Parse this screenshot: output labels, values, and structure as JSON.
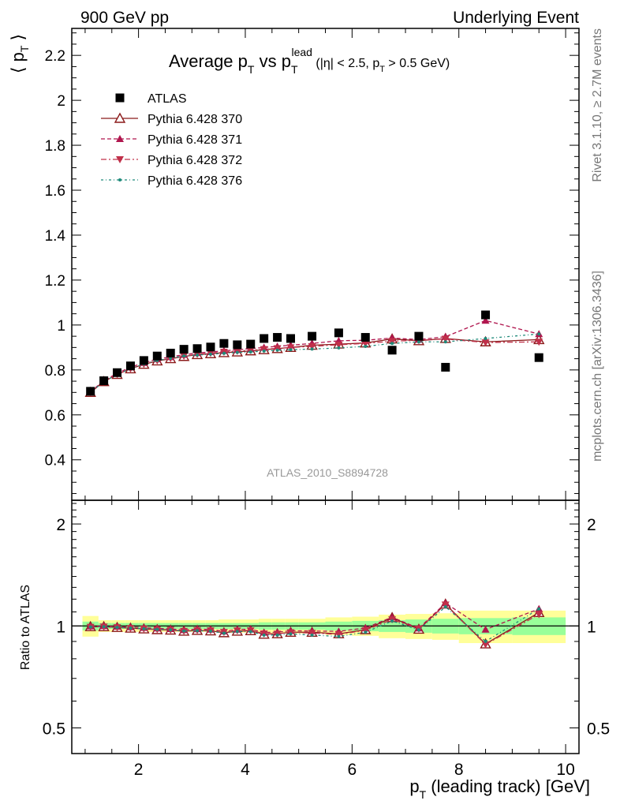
{
  "header": {
    "left": "900 GeV pp",
    "right": "Underlying Event"
  },
  "side_labels": {
    "top": "Rivet 3.1.10, ≥ 2.7M events",
    "bottom": "mcplots.cern.ch [arXiv:1306.3436]"
  },
  "watermark": "ATLAS_2010_S8894728",
  "chart_data": [
    {
      "type": "scatter",
      "title_parts": {
        "main": "Average p",
        "main_sub": "T",
        "vs": " vs p",
        "vs_sub": "T",
        "vs_sup": "lead",
        "cut_a": " (|η| < 2.5, p",
        "cut_sub": "T",
        "cut_b": " > 0.5 GeV)"
      },
      "ylabel_parts": {
        "open": "⟨ p",
        "sub": "T",
        "close": " ⟩"
      },
      "xlim": [
        0.75,
        10.25
      ],
      "ylim": [
        0.22,
        2.32
      ],
      "yticks": [
        {
          "v": 0.4,
          "label": "0.4"
        },
        {
          "v": 0.6,
          "label": "0.6"
        },
        {
          "v": 0.8,
          "label": "0.8"
        },
        {
          "v": 1.0,
          "label": "1"
        },
        {
          "v": 1.2,
          "label": "1.2"
        },
        {
          "v": 1.4,
          "label": "1.4"
        },
        {
          "v": 1.6,
          "label": "1.6"
        },
        {
          "v": 1.8,
          "label": "1.8"
        },
        {
          "v": 2.0,
          "label": "2"
        },
        {
          "v": 2.2,
          "label": "2.2"
        }
      ],
      "x": [
        1.1,
        1.35,
        1.6,
        1.85,
        2.1,
        2.35,
        2.6,
        2.85,
        3.1,
        3.35,
        3.6,
        3.85,
        4.1,
        4.35,
        4.6,
        4.85,
        5.25,
        5.75,
        6.25,
        6.75,
        7.25,
        7.75,
        8.5,
        9.5
      ],
      "series": [
        {
          "name": "ATLAS",
          "marker": "square",
          "color": "#000000",
          "line": "none",
          "values": [
            0.705,
            0.752,
            0.788,
            0.818,
            0.842,
            0.862,
            0.875,
            0.892,
            0.895,
            0.902,
            0.918,
            0.912,
            0.915,
            0.94,
            0.945,
            0.94,
            0.95,
            0.965,
            0.945,
            0.888,
            0.95,
            0.812,
            1.045,
            0.855
          ]
        },
        {
          "name": "Pythia 6.428 370",
          "marker": "triangle-open",
          "color": "#8b1a1a",
          "line": "solid",
          "values": [
            0.7,
            0.748,
            0.78,
            0.805,
            0.825,
            0.84,
            0.85,
            0.86,
            0.868,
            0.872,
            0.877,
            0.88,
            0.885,
            0.89,
            0.895,
            0.9,
            0.91,
            0.915,
            0.92,
            0.938,
            0.93,
            0.94,
            0.925,
            0.935
          ]
        },
        {
          "name": "Pythia 6.428 371",
          "marker": "triangle-up",
          "color": "#b0164e",
          "line": "dashed",
          "values": [
            0.703,
            0.752,
            0.785,
            0.812,
            0.832,
            0.848,
            0.858,
            0.868,
            0.876,
            0.88,
            0.885,
            0.89,
            0.895,
            0.9,
            0.905,
            0.91,
            0.918,
            0.93,
            0.932,
            0.942,
            0.935,
            0.948,
            1.02,
            0.96
          ]
        },
        {
          "name": "Pythia 6.428 372",
          "marker": "triangle-down",
          "color": "#c0304a",
          "line": "dashdot",
          "values": [
            0.7,
            0.748,
            0.78,
            0.806,
            0.826,
            0.842,
            0.852,
            0.862,
            0.87,
            0.875,
            0.88,
            0.884,
            0.888,
            0.892,
            0.896,
            0.9,
            0.905,
            0.912,
            0.918,
            0.928,
            0.932,
            0.938,
            0.922,
            0.925
          ]
        },
        {
          "name": "Pythia 6.428 376",
          "marker": "dot",
          "color": "#1f8a7a",
          "line": "dashdotted",
          "values": [
            0.7,
            0.748,
            0.78,
            0.806,
            0.826,
            0.842,
            0.852,
            0.862,
            0.866,
            0.87,
            0.874,
            0.878,
            0.88,
            0.884,
            0.888,
            0.89,
            0.893,
            0.898,
            0.905,
            0.918,
            0.925,
            0.925,
            0.94,
            0.96
          ]
        }
      ]
    },
    {
      "type": "scatter",
      "ylabel": "Ratio to ATLAS",
      "xlabel_parts": {
        "a": "p",
        "sub": "T",
        "b": " (leading track) [GeV]"
      },
      "xlim": [
        0.75,
        10.25
      ],
      "ylim": [
        0.42,
        2.35
      ],
      "log_y": true,
      "xticks": [
        {
          "v": 2,
          "label": "2"
        },
        {
          "v": 4,
          "label": "4"
        },
        {
          "v": 6,
          "label": "6"
        },
        {
          "v": 8,
          "label": "8"
        },
        {
          "v": 10,
          "label": "10"
        }
      ],
      "yticks": [
        {
          "v": 0.5,
          "label": "0.5"
        },
        {
          "v": 1,
          "label": "1"
        },
        {
          "v": 2,
          "label": "2"
        }
      ],
      "band_colors": {
        "inner": "#99ff99",
        "outer": "#ffff99"
      },
      "x": [
        1.1,
        1.35,
        1.6,
        1.85,
        2.1,
        2.35,
        2.6,
        2.85,
        3.1,
        3.35,
        3.6,
        3.85,
        4.1,
        4.35,
        4.6,
        4.85,
        5.25,
        5.75,
        6.25,
        6.75,
        7.25,
        7.75,
        8.5,
        9.5
      ],
      "bins": [
        [
          0.95,
          1.25
        ],
        [
          1.25,
          1.5
        ],
        [
          1.5,
          1.75
        ],
        [
          1.75,
          2.0
        ],
        [
          2.0,
          2.25
        ],
        [
          2.25,
          2.5
        ],
        [
          2.5,
          2.75
        ],
        [
          2.75,
          3.0
        ],
        [
          3.0,
          3.25
        ],
        [
          3.25,
          3.5
        ],
        [
          3.5,
          3.75
        ],
        [
          3.75,
          4.0
        ],
        [
          4.0,
          4.25
        ],
        [
          4.25,
          4.5
        ],
        [
          4.5,
          4.75
        ],
        [
          4.75,
          5.0
        ],
        [
          5.0,
          5.5
        ],
        [
          5.5,
          6.0
        ],
        [
          6.0,
          6.5
        ],
        [
          6.5,
          7.0
        ],
        [
          7.0,
          7.5
        ],
        [
          7.5,
          8.0
        ],
        [
          8.0,
          9.0
        ],
        [
          9.0,
          10.0
        ]
      ],
      "band_inner": [
        0.03,
        0.02,
        0.02,
        0.02,
        0.02,
        0.02,
        0.02,
        0.02,
        0.02,
        0.02,
        0.02,
        0.02,
        0.02,
        0.025,
        0.025,
        0.025,
        0.025,
        0.03,
        0.035,
        0.04,
        0.045,
        0.05,
        0.055,
        0.06
      ],
      "band_outer": [
        0.07,
        0.04,
        0.04,
        0.04,
        0.04,
        0.04,
        0.04,
        0.04,
        0.04,
        0.04,
        0.045,
        0.045,
        0.045,
        0.05,
        0.05,
        0.05,
        0.05,
        0.06,
        0.065,
        0.08,
        0.085,
        0.09,
        0.11,
        0.11
      ],
      "series": [
        {
          "name": "Pythia 6.428 370",
          "marker": "triangle-open",
          "color": "#8b1a1a",
          "line": "solid",
          "values": [
            0.995,
            0.995,
            0.99,
            0.985,
            0.98,
            0.975,
            0.972,
            0.965,
            0.97,
            0.967,
            0.955,
            0.965,
            0.968,
            0.945,
            0.948,
            0.958,
            0.958,
            0.948,
            0.975,
            1.058,
            0.978,
            1.16,
            0.885,
            1.095
          ]
        },
        {
          "name": "Pythia 6.428 371",
          "marker": "triangle-up",
          "color": "#b0164e",
          "line": "dashed",
          "values": [
            0.998,
            1.0,
            0.996,
            0.993,
            0.988,
            0.984,
            0.98,
            0.973,
            0.979,
            0.976,
            0.964,
            0.976,
            0.978,
            0.957,
            0.958,
            0.968,
            0.966,
            0.964,
            0.986,
            1.061,
            0.984,
            1.168,
            0.976,
            1.123
          ]
        },
        {
          "name": "Pythia 6.428 372",
          "marker": "triangle-down",
          "color": "#c0304a",
          "line": "dashdot",
          "values": [
            0.993,
            0.995,
            0.99,
            0.985,
            0.981,
            0.977,
            0.974,
            0.966,
            0.972,
            0.97,
            0.959,
            0.969,
            0.97,
            0.949,
            0.948,
            0.957,
            0.953,
            0.945,
            0.971,
            1.045,
            0.981,
            1.155,
            0.882,
            1.082
          ]
        },
        {
          "name": "Pythia 6.428 376",
          "marker": "dot",
          "color": "#1f8a7a",
          "line": "dashdotted",
          "values": [
            0.993,
            0.995,
            0.99,
            0.985,
            0.981,
            0.977,
            0.974,
            0.966,
            0.968,
            0.965,
            0.952,
            0.963,
            0.962,
            0.94,
            0.94,
            0.947,
            0.94,
            0.931,
            0.958,
            1.034,
            0.974,
            1.139,
            0.9,
            1.123
          ]
        }
      ]
    }
  ]
}
